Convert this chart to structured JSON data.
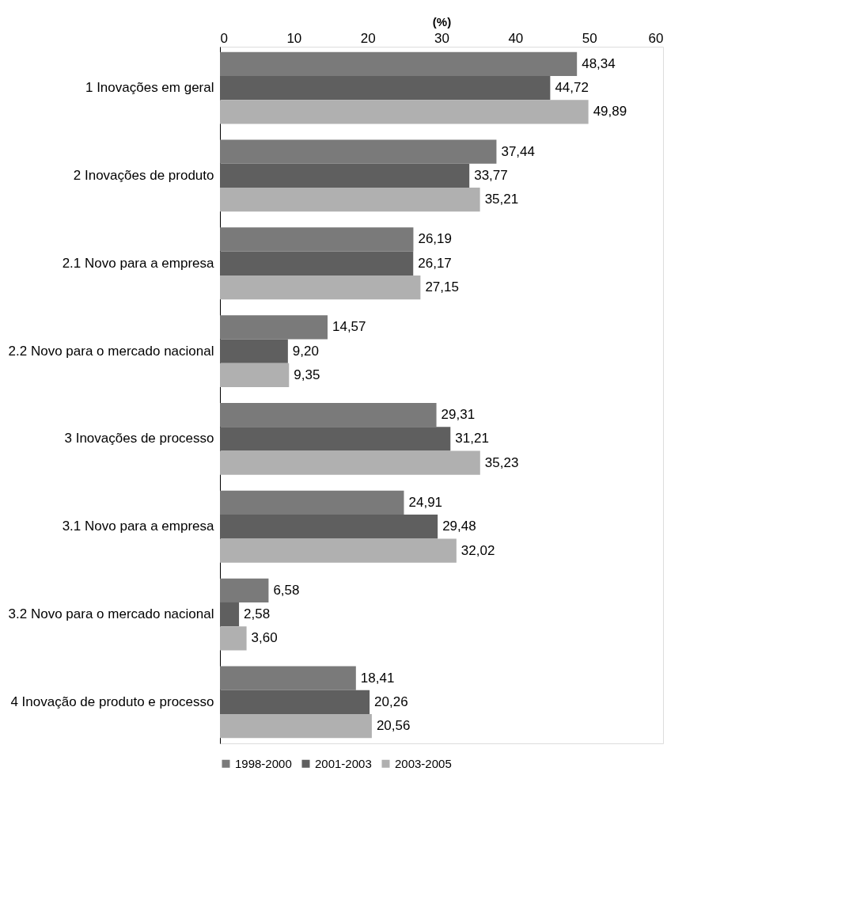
{
  "chart_data": {
    "type": "bar",
    "orientation": "horizontal",
    "xlabel": "(%)",
    "categories": [
      "1 Inovações em geral",
      "2 Inovações de produto",
      "2.1 Novo para a empresa",
      "2.2 Novo para o mercado nacional",
      "3 Inovações de processo",
      "3.1 Novo para a empresa",
      "3.2 Novo para o mercado nacional",
      "4 Inovação de produto e processo"
    ],
    "series": [
      {
        "name": "1998-2000",
        "color": "#7a7a7a",
        "values": [
          48.34,
          37.44,
          26.19,
          14.57,
          29.31,
          24.91,
          6.58,
          18.41
        ],
        "value_labels": [
          "48,34",
          "37,44",
          "26,19",
          "14,57",
          "29,31",
          "24,91",
          "6,58",
          "18,41"
        ]
      },
      {
        "name": "2001-2003",
        "color": "#5f5f5f",
        "values": [
          44.72,
          33.77,
          26.17,
          9.2,
          31.21,
          29.48,
          2.58,
          20.26
        ],
        "value_labels": [
          "44,72",
          "33,77",
          "26,17",
          "9,20",
          "31,21",
          "29,48",
          "2,58",
          "20,26"
        ]
      },
      {
        "name": "2003-2005",
        "color": "#b0b0b0",
        "values": [
          49.89,
          35.21,
          27.15,
          9.35,
          35.23,
          32.02,
          3.6,
          20.56
        ],
        "value_labels": [
          "49,89",
          "35,21",
          "27,15",
          "9,35",
          "35,23",
          "32,02",
          "3,60",
          "20,56"
        ]
      }
    ],
    "xlim": [
      0,
      60
    ],
    "xticks": [
      0,
      10,
      20,
      30,
      40,
      50,
      60
    ],
    "grid": false,
    "legend": "bottom"
  }
}
